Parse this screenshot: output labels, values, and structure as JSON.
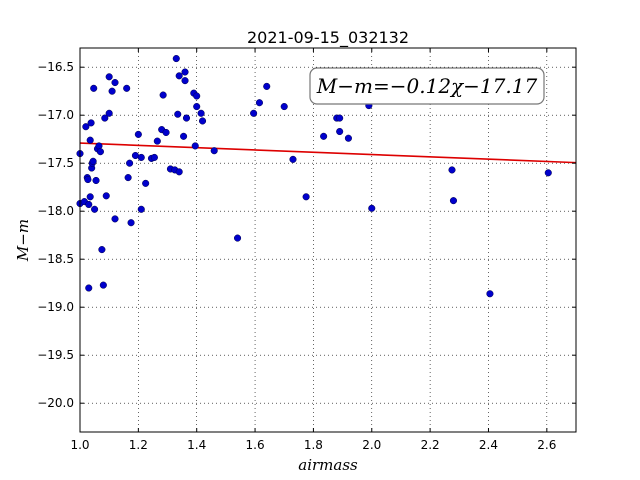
{
  "chart_data": {
    "type": "scatter",
    "title": "2021-09-15_032132",
    "xlabel": "airmass",
    "ylabel": "M−m",
    "xlim": [
      1.0,
      2.7
    ],
    "ylim": [
      -20.3,
      -16.3
    ],
    "y_inverted": true,
    "grid": true,
    "x_ticks": [
      1.0,
      1.2,
      1.4,
      1.6,
      1.8,
      2.0,
      2.2,
      2.4,
      2.6
    ],
    "x_tick_labels": [
      "1.0",
      "1.2",
      "1.4",
      "1.6",
      "1.8",
      "2.0",
      "2.2",
      "2.4",
      "2.6"
    ],
    "y_ticks": [
      -16.5,
      -17.0,
      -17.5,
      -18.0,
      -18.5,
      -19.0,
      -19.5,
      -20.0
    ],
    "y_tick_labels": [
      "−16.5",
      "−17.0",
      "−17.5",
      "−18.0",
      "−18.5",
      "−19.0",
      "−19.5",
      "−20.0"
    ],
    "annotation": "M−m=−0.12χ−17.17",
    "colors": {
      "points": "#0000cc",
      "fit": "#dd0000"
    },
    "fit": {
      "slope": -0.12,
      "intercept": -17.17
    },
    "points": [
      [
        1.0,
        -17.4
      ],
      [
        1.0,
        -17.92
      ],
      [
        1.015,
        -17.9
      ],
      [
        1.02,
        -17.12
      ],
      [
        1.025,
        -17.65
      ],
      [
        1.027,
        -17.67
      ],
      [
        1.03,
        -18.8
      ],
      [
        1.03,
        -17.93
      ],
      [
        1.035,
        -17.85
      ],
      [
        1.035,
        -17.26
      ],
      [
        1.038,
        -17.08
      ],
      [
        1.04,
        -17.55
      ],
      [
        1.042,
        -17.5
      ],
      [
        1.045,
        -17.48
      ],
      [
        1.047,
        -16.72
      ],
      [
        1.05,
        -17.98
      ],
      [
        1.055,
        -17.68
      ],
      [
        1.06,
        -17.35
      ],
      [
        1.065,
        -17.32
      ],
      [
        1.07,
        -17.38
      ],
      [
        1.075,
        -18.4
      ],
      [
        1.08,
        -18.77
      ],
      [
        1.085,
        -17.03
      ],
      [
        1.09,
        -17.84
      ],
      [
        1.1,
        -16.6
      ],
      [
        1.1,
        -16.98
      ],
      [
        1.11,
        -16.75
      ],
      [
        1.12,
        -16.66
      ],
      [
        1.12,
        -18.08
      ],
      [
        1.16,
        -16.72
      ],
      [
        1.165,
        -17.65
      ],
      [
        1.17,
        -17.5
      ],
      [
        1.175,
        -18.12
      ],
      [
        1.19,
        -17.42
      ],
      [
        1.2,
        -17.2
      ],
      [
        1.21,
        -17.44
      ],
      [
        1.21,
        -17.98
      ],
      [
        1.225,
        -17.71
      ],
      [
        1.245,
        -17.45
      ],
      [
        1.255,
        -17.44
      ],
      [
        1.265,
        -17.27
      ],
      [
        1.28,
        -17.15
      ],
      [
        1.285,
        -16.79
      ],
      [
        1.295,
        -17.18
      ],
      [
        1.31,
        -17.56
      ],
      [
        1.325,
        -17.57
      ],
      [
        1.33,
        -16.41
      ],
      [
        1.335,
        -16.99
      ],
      [
        1.34,
        -16.59
      ],
      [
        1.34,
        -17.59
      ],
      [
        1.355,
        -17.22
      ],
      [
        1.36,
        -16.55
      ],
      [
        1.36,
        -16.64
      ],
      [
        1.365,
        -17.03
      ],
      [
        1.39,
        -16.77
      ],
      [
        1.395,
        -17.32
      ],
      [
        1.4,
        -16.91
      ],
      [
        1.4,
        -16.8
      ],
      [
        1.415,
        -16.98
      ],
      [
        1.42,
        -17.06
      ],
      [
        1.46,
        -17.37
      ],
      [
        1.54,
        -18.28
      ],
      [
        1.595,
        -16.98
      ],
      [
        1.615,
        -16.87
      ],
      [
        1.64,
        -16.7
      ],
      [
        1.7,
        -16.91
      ],
      [
        1.73,
        -17.46
      ],
      [
        1.775,
        -17.85
      ],
      [
        1.835,
        -17.22
      ],
      [
        1.88,
        -17.03
      ],
      [
        1.89,
        -17.03
      ],
      [
        1.89,
        -17.17
      ],
      [
        1.92,
        -17.24
      ],
      [
        1.99,
        -16.9
      ],
      [
        2.0,
        -17.97
      ],
      [
        2.275,
        -17.57
      ],
      [
        2.28,
        -17.89
      ],
      [
        2.405,
        -18.86
      ],
      [
        2.605,
        -17.6
      ]
    ]
  }
}
